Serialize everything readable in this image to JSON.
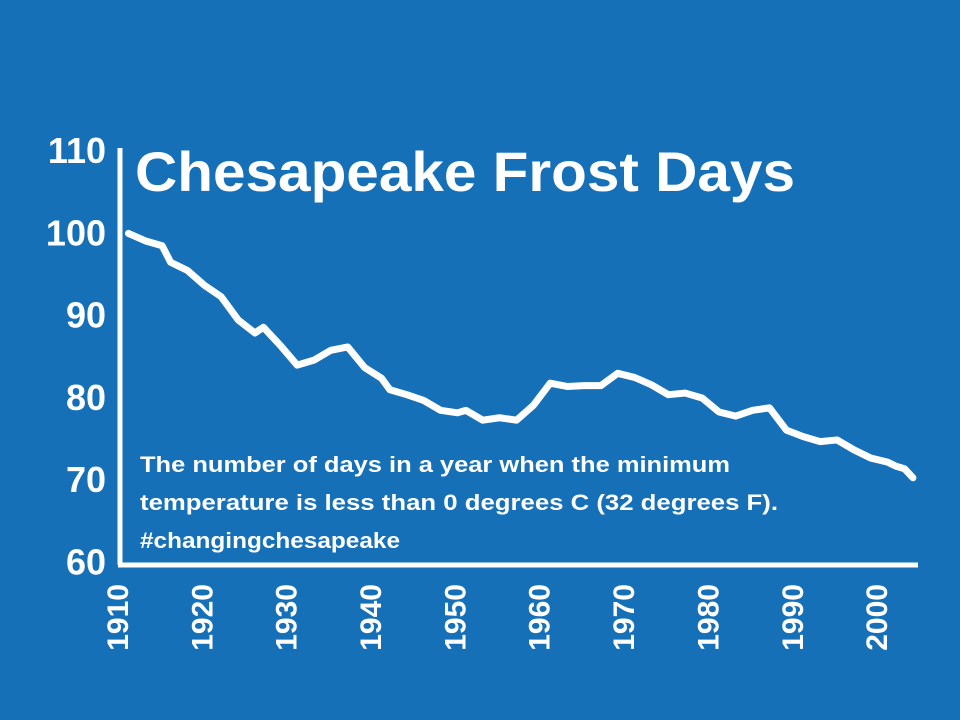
{
  "chart_data": {
    "type": "line",
    "title": "Chesapeake Frost Days",
    "annotation": [
      "The number of days in a year when the minimum",
      "temperature is less than 0 degrees C (32 degrees F).",
      "#changingchesapeake"
    ],
    "x": [
      1911,
      1913,
      1915,
      1916,
      1918,
      1920,
      1922,
      1924,
      1926,
      1927,
      1929,
      1931,
      1933,
      1935,
      1937,
      1939,
      1941,
      1942,
      1944,
      1946,
      1948,
      1950,
      1951,
      1953,
      1955,
      1957,
      1959,
      1961,
      1963,
      1965,
      1967,
      1969,
      1971,
      1973,
      1975,
      1977,
      1979,
      1981,
      1983,
      1985,
      1987,
      1989,
      1991,
      1993,
      1995,
      1997,
      1999,
      2001,
      2002,
      2003,
      2004
    ],
    "series": [
      {
        "color": "#ffffff",
        "values": [
          100.3,
          99.4,
          98.8,
          96.8,
          95.8,
          94,
          92.6,
          89.8,
          88.2,
          88.9,
          86.7,
          84.3,
          84.9,
          86.1,
          86.5,
          84,
          82.7,
          81.3,
          80.7,
          80,
          78.8,
          78.5,
          78.8,
          77.6,
          77.9,
          77.6,
          79.4,
          82.1,
          81.7,
          81.8,
          81.8,
          83.3,
          82.8,
          81.9,
          80.7,
          80.9,
          80.3,
          78.6,
          78.1,
          78.8,
          79.1,
          76.4,
          75.6,
          75,
          75.2,
          74,
          73,
          72.5,
          72,
          71.7,
          70.6
        ]
      }
    ],
    "xlim": [
      1910,
      2004.6
    ],
    "xticks": [
      1910,
      1920,
      1930,
      1940,
      1950,
      1960,
      1970,
      1980,
      1990,
      2000
    ],
    "ylim": [
      60,
      110.2
    ],
    "yticks": [
      60,
      70,
      80,
      90,
      100,
      110
    ]
  }
}
